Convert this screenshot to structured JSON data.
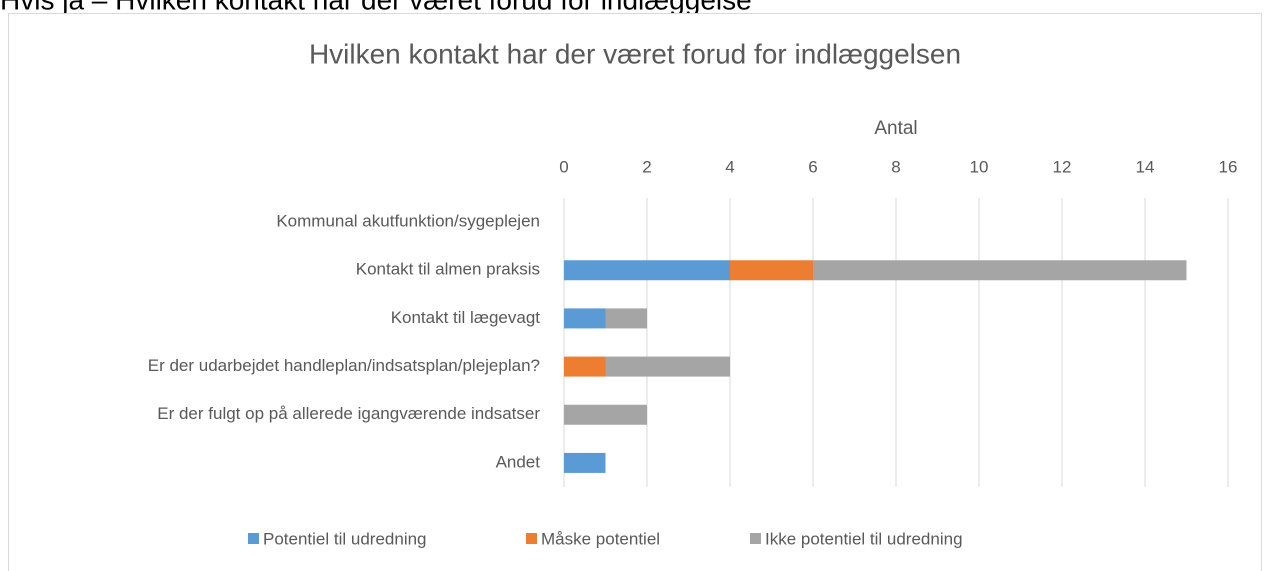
{
  "page_heading": "Hvis ja – Hvilken kontakt har der været forud for indlæggelse",
  "chart_data": {
    "type": "stacked_bar_horizontal",
    "title": "Hvilken kontakt har der været forud for indlæggelsen",
    "x_label": "Antal",
    "categories": [
      "Kommunal akutfunktion/sygeplejen",
      "Kontakt til almen praksis",
      "Kontakt til lægevagt",
      "Er der udarbejdet handleplan/indsatsplan/plejeplan?",
      "Er der fulgt op på allerede igangværende indsatser",
      "Andet"
    ],
    "series": [
      {
        "name": "Potentiel til udredning",
        "color": "#5b9bd5",
        "values": [
          0,
          4,
          1,
          0,
          0,
          1
        ]
      },
      {
        "name": "Måske potentiel",
        "color": "#ed7d31",
        "values": [
          0,
          2,
          0,
          1,
          0,
          0
        ]
      },
      {
        "name": "Ikke potentiel til udredning",
        "color": "#a5a5a5",
        "values": [
          0,
          9,
          1,
          3,
          2,
          0
        ]
      }
    ],
    "xlim": [
      0,
      16
    ],
    "xticks": [
      0,
      2,
      4,
      6,
      8,
      10,
      12,
      14,
      16
    ],
    "grid": true,
    "legend": "bottom"
  }
}
